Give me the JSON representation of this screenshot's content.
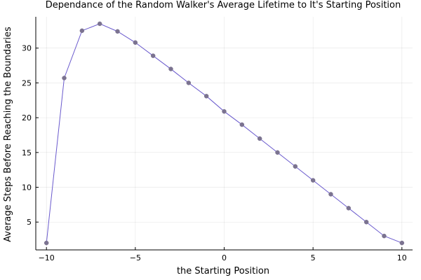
{
  "chart_data": {
    "type": "line",
    "title": "Dependance of the Random Walker's Average Lifetime to It's Starting Position",
    "xlabel": "the Starting Position",
    "ylabel": "Average Steps Before Reaching the Boundaries",
    "xlim": [
      -10.6,
      10.6
    ],
    "ylim": [
      1.0,
      34.5
    ],
    "xticks": [
      -10,
      -5,
      0,
      5,
      10
    ],
    "xtick_labels": [
      "−10",
      "−5",
      "0",
      "5",
      "10"
    ],
    "yticks": [
      5,
      10,
      15,
      20,
      25,
      30
    ],
    "ytick_labels": [
      "5",
      "10",
      "15",
      "20",
      "25",
      "30"
    ],
    "grid": true,
    "legend": "none",
    "series": [
      {
        "color": "#6a5acd",
        "marker_color": "#7b7390",
        "x": [
          -10,
          -9,
          -8,
          -7,
          -6,
          -5,
          -4,
          -3,
          -2,
          -1,
          0,
          1,
          2,
          3,
          4,
          5,
          6,
          7,
          8,
          9,
          10
        ],
        "y": [
          2.0,
          25.7,
          32.5,
          33.5,
          32.4,
          30.8,
          28.9,
          27.0,
          25.0,
          23.1,
          20.9,
          19.0,
          17.0,
          15.0,
          13.0,
          11.0,
          9.0,
          7.0,
          5.0,
          3.0,
          2.0
        ]
      }
    ]
  }
}
